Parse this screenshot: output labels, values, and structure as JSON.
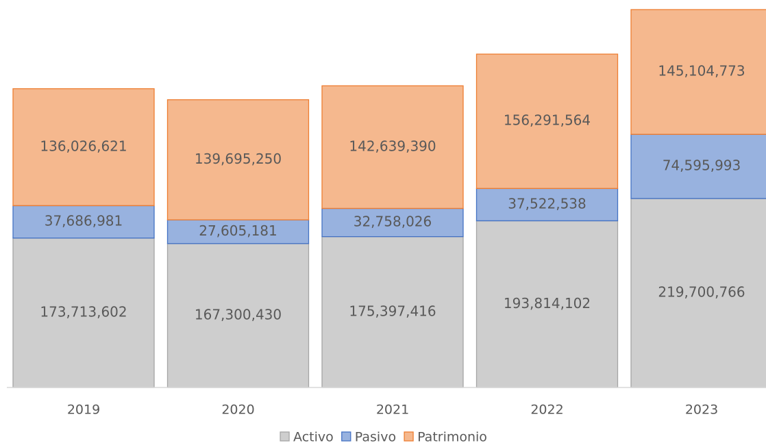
{
  "chart_data": {
    "type": "stacked_bar",
    "categories": [
      "2019",
      "2020",
      "2021",
      "2022",
      "2023"
    ],
    "series": [
      {
        "name": "Activo",
        "color": "#a5a5a5",
        "values": [
          173713602,
          167300430,
          175397416,
          193814102,
          219700766
        ],
        "value_labels": [
          "173,713,602",
          "167,300,430",
          "175,397,416",
          "193,814,102",
          "219,700,766"
        ]
      },
      {
        "name": "Pasivo",
        "color": "#4472c4",
        "values": [
          37686981,
          27605181,
          32758026,
          37522538,
          74595993
        ],
        "value_labels": [
          "37,686,981",
          "27,605,181",
          "32,758,026",
          "37,522,538",
          "74,595,993"
        ]
      },
      {
        "name": "Patrimonio",
        "color": "#ed7d31",
        "values": [
          136026621,
          139695250,
          142639390,
          156291564,
          145104773
        ],
        "value_labels": [
          "136,026,621",
          "139,695,250",
          "142,639,390",
          "156,291,564",
          "145,104,773"
        ]
      }
    ],
    "legend": "bottom"
  }
}
